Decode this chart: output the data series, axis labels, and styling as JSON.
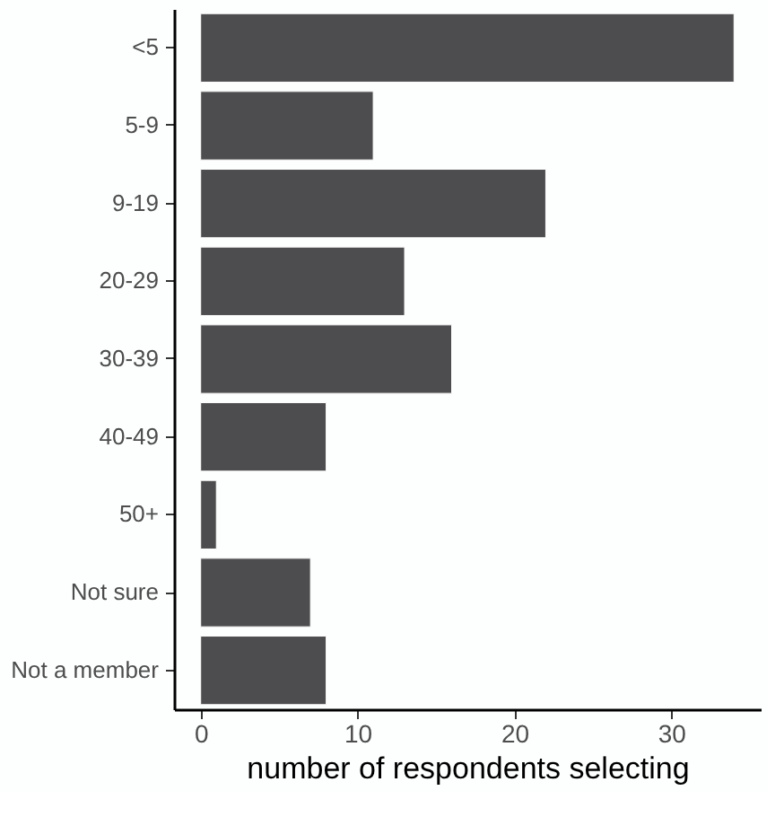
{
  "chart_data": {
    "type": "bar",
    "orientation": "horizontal",
    "xlabel": "number of respondents selecting",
    "categories": [
      "<5",
      "5-9",
      "9-19",
      "20-29",
      "30-39",
      "40-49",
      "50+",
      "Not sure",
      "Not a member"
    ],
    "values": [
      34,
      11,
      22,
      13,
      16,
      8,
      1,
      7,
      8
    ],
    "color": "#4d4d4f",
    "xlim": [
      -1.7,
      35.7
    ],
    "xticks": [
      0,
      10,
      20,
      30
    ],
    "grid": false
  }
}
